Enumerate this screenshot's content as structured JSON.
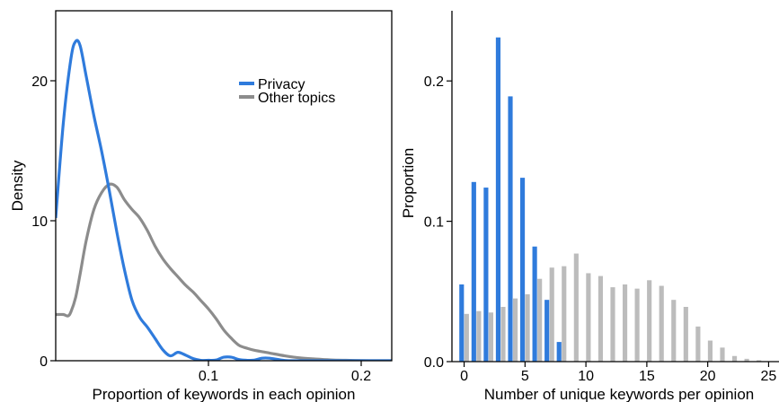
{
  "colors": {
    "privacy": "#2f7bdc",
    "other": "#8c8c8c",
    "other_bar": "#bcbcbc",
    "axis": "#000000"
  },
  "chart_data": [
    {
      "type": "line",
      "subtype": "density",
      "xlabel": "Proportion of keywords in each opinion",
      "ylabel": "Density",
      "xlim": [
        0,
        0.22
      ],
      "ylim": [
        0,
        25
      ],
      "xticks": [
        0.1,
        0.2
      ],
      "xtick_labels": [
        "0.1",
        "0.2"
      ],
      "yticks": [
        0,
        10,
        20
      ],
      "ytick_labels": [
        "0",
        "10",
        "20"
      ],
      "grid": false,
      "legend_position": "top-right",
      "series": [
        {
          "name": "Privacy",
          "color": "#2f7bdc",
          "x": [
            0,
            0.005,
            0.01,
            0.013,
            0.016,
            0.02,
            0.025,
            0.03,
            0.035,
            0.04,
            0.045,
            0.05,
            0.055,
            0.06,
            0.065,
            0.07,
            0.075,
            0.08,
            0.085,
            0.09,
            0.095,
            0.1,
            0.105,
            0.11,
            0.115,
            0.12,
            0.125,
            0.13,
            0.135,
            0.14,
            0.15,
            0.16,
            0.18,
            0.2,
            0.22
          ],
          "y": [
            10.2,
            17.0,
            21.6,
            22.8,
            22.5,
            20.3,
            17.5,
            15.0,
            12.2,
            9.2,
            6.5,
            4.3,
            3.1,
            2.4,
            1.6,
            0.8,
            0.35,
            0.6,
            0.4,
            0.15,
            0.03,
            0.03,
            0.05,
            0.25,
            0.25,
            0.08,
            0.03,
            0.04,
            0.18,
            0.18,
            0.02,
            0.0,
            0.0,
            0.0,
            0.0
          ]
        },
        {
          "name": "Other topics",
          "color": "#8c8c8c",
          "x": [
            0,
            0.005,
            0.008,
            0.01,
            0.013,
            0.016,
            0.02,
            0.025,
            0.03,
            0.035,
            0.04,
            0.045,
            0.05,
            0.055,
            0.06,
            0.065,
            0.07,
            0.075,
            0.08,
            0.085,
            0.09,
            0.095,
            0.1,
            0.105,
            0.11,
            0.115,
            0.12,
            0.125,
            0.13,
            0.14,
            0.15,
            0.16,
            0.17,
            0.18,
            0.19,
            0.2,
            0.21,
            0.22
          ],
          "y": [
            3.3,
            3.3,
            3.2,
            3.5,
            4.5,
            6.2,
            8.6,
            10.8,
            12.0,
            12.6,
            12.4,
            11.5,
            10.8,
            10.2,
            9.3,
            8.2,
            7.3,
            6.6,
            6.0,
            5.4,
            4.9,
            4.3,
            3.7,
            3.0,
            2.2,
            1.6,
            1.1,
            0.9,
            0.75,
            0.55,
            0.35,
            0.2,
            0.12,
            0.06,
            0.03,
            0.01,
            0.0,
            0.0
          ]
        }
      ]
    },
    {
      "type": "bar",
      "xlabel": "Number of unique keywords per opinion",
      "ylabel": "Proportion",
      "xlim": [
        -1,
        26
      ],
      "ylim": [
        0,
        0.25
      ],
      "xticks": [
        0,
        5,
        10,
        15,
        20,
        25
      ],
      "xtick_labels": [
        "0",
        "5",
        "10",
        "15",
        "20",
        "25"
      ],
      "yticks": [
        0,
        0.1,
        0.2
      ],
      "ytick_labels": [
        "0.0",
        "0.1",
        "0.2"
      ],
      "grid": false,
      "series": [
        {
          "name": "Privacy",
          "color": "#2f7bdc",
          "x": [
            0,
            1,
            2,
            3,
            4,
            5,
            6,
            7,
            8
          ],
          "values": [
            0.055,
            0.128,
            0.124,
            0.231,
            0.189,
            0.131,
            0.082,
            0.044,
            0.014
          ]
        },
        {
          "name": "Other topics",
          "color": "#bcbcbc",
          "x": [
            0,
            1,
            2,
            3,
            4,
            5,
            6,
            7,
            8,
            9,
            10,
            11,
            12,
            13,
            14,
            15,
            16,
            17,
            18,
            19,
            20,
            21,
            22,
            23,
            24
          ],
          "values": [
            0.034,
            0.036,
            0.035,
            0.039,
            0.045,
            0.048,
            0.059,
            0.067,
            0.068,
            0.077,
            0.063,
            0.061,
            0.053,
            0.055,
            0.052,
            0.058,
            0.054,
            0.044,
            0.039,
            0.025,
            0.015,
            0.01,
            0.004,
            0.002,
            0.001
          ]
        }
      ]
    }
  ]
}
